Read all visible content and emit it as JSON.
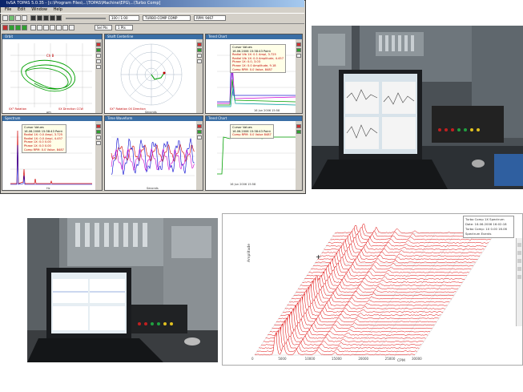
{
  "software": {
    "window_title": "tvSA TOPAS 5.0.35 - [c:\\Program Files\\...\\TOPAS\\Machine\\EPG\\...\\Turbo Comp]",
    "menu": [
      "File",
      "Edit",
      "Window",
      "Help"
    ],
    "speed_field": "100 / 1:00",
    "machine_field": "TURBO-COMP COMP",
    "status_field": "RPM: 9467",
    "dropdown_1": "Sel Pts",
    "dropdown_2": "1 Pts",
    "panels": {
      "orbit": "Orbit",
      "shaft_centerline": "Shaft Centerline",
      "trend": "Trend Chart",
      "spectrum": "Spectrum",
      "time_waveform": "Time Waveform",
      "trend2": "Trend Chart"
    },
    "cursor_values": {
      "heading": "Cursor Values",
      "lines": [
        "16.06.2006 15:58:43 Point",
        "Radial Vib 1X: 0.1 Ampl, 3.725",
        "Radial Vib 1X: 0.0 Amplitude, 4.457",
        "Phase 1X: 0.0, 3.03",
        "Phase 1X: 0.0 Amplitude, 9.18",
        "Comp RPM: 0.0 Value, 8487"
      ]
    },
    "cursor_values_2": {
      "heading": "Cursor Values",
      "lines": [
        "16.06.2006 15:58:43 Point",
        "Radial 1X: 0.0 Ampl, 3.725",
        "Radial 1X: 0.0 Ampl, 4.457",
        "Phase 1X: 0.0 0.00",
        "Phase 1X: 0.0 0.00",
        "Comp RPM: 0.0 Value, 8487"
      ]
    },
    "cursor_values_3": {
      "heading": "Cursor Values",
      "lines": [
        "16.06.2006 15:58:43 Point",
        "Comp RPM: 0.0 Value 8487"
      ]
    },
    "axis_labels": {
      "orbit_x": "µm",
      "centerline_x": "Seconds",
      "spectrum_x": "Hz",
      "waveform_x": "Seconds",
      "trend_time": "16 Jun 2006 15:58"
    }
  },
  "waterfall": {
    "legend": [
      "Turbo Comp 1X Spectrum",
      "Date: 16.06.2006 16:02:18",
      "Turbo Comp: 1X 0.00 16.06",
      "Spectrum Events"
    ],
    "x_label": "CPM",
    "y_label": "Amplitude",
    "x_ticks": [
      "0",
      "5000",
      "10000",
      "15000",
      "20000",
      "25000",
      "30000"
    ],
    "peak_color": "#e00000"
  },
  "colors": {
    "window_face": "#d4d0c8",
    "title_blue": "#0a246a",
    "panel_title": "#3a6ea5",
    "waterfall_line": "#e00000",
    "waterfall_grid": "#c8c8c8"
  }
}
